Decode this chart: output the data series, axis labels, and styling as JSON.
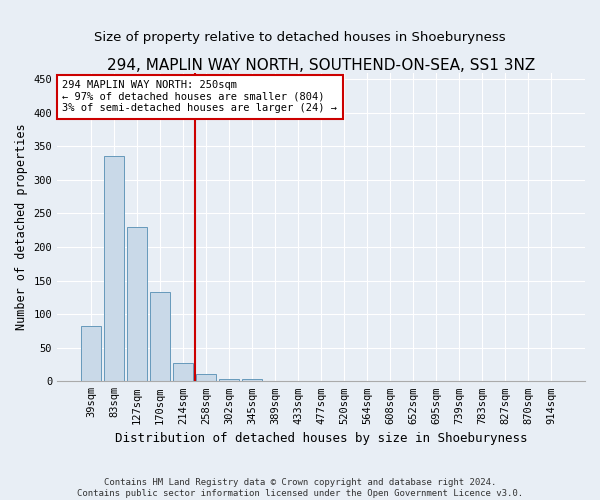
{
  "title": "294, MAPLIN WAY NORTH, SOUTHEND-ON-SEA, SS1 3NZ",
  "subtitle": "Size of property relative to detached houses in Shoeburyness",
  "xlabel": "Distribution of detached houses by size in Shoeburyness",
  "ylabel": "Number of detached properties",
  "footer1": "Contains HM Land Registry data © Crown copyright and database right 2024.",
  "footer2": "Contains public sector information licensed under the Open Government Licence v3.0.",
  "categories": [
    "39sqm",
    "83sqm",
    "127sqm",
    "170sqm",
    "214sqm",
    "258sqm",
    "302sqm",
    "345sqm",
    "389sqm",
    "433sqm",
    "477sqm",
    "520sqm",
    "564sqm",
    "608sqm",
    "652sqm",
    "695sqm",
    "739sqm",
    "783sqm",
    "827sqm",
    "870sqm",
    "914sqm"
  ],
  "values": [
    83,
    335,
    230,
    133,
    28,
    11,
    4,
    3,
    1,
    0,
    0,
    0,
    0,
    1,
    0,
    0,
    0,
    1,
    0,
    0,
    1
  ],
  "bar_color": "#c9d9e8",
  "bar_edge_color": "#6699bb",
  "vline_position": 4.5,
  "vline_color": "#cc0000",
  "annotation_line1": "294 MAPLIN WAY NORTH: 250sqm",
  "annotation_line2": "← 97% of detached houses are smaller (804)",
  "annotation_line3": "3% of semi-detached houses are larger (24) →",
  "ylim": [
    0,
    460
  ],
  "yticks": [
    0,
    50,
    100,
    150,
    200,
    250,
    300,
    350,
    400,
    450
  ],
  "bg_color": "#e8eef5",
  "plot_bg_color": "#e8eef5",
  "grid_color": "#ffffff",
  "title_fontsize": 11,
  "subtitle_fontsize": 9.5,
  "ylabel_fontsize": 8.5,
  "xlabel_fontsize": 9,
  "tick_fontsize": 7.5,
  "annotation_fontsize": 7.5,
  "footer_fontsize": 6.5
}
